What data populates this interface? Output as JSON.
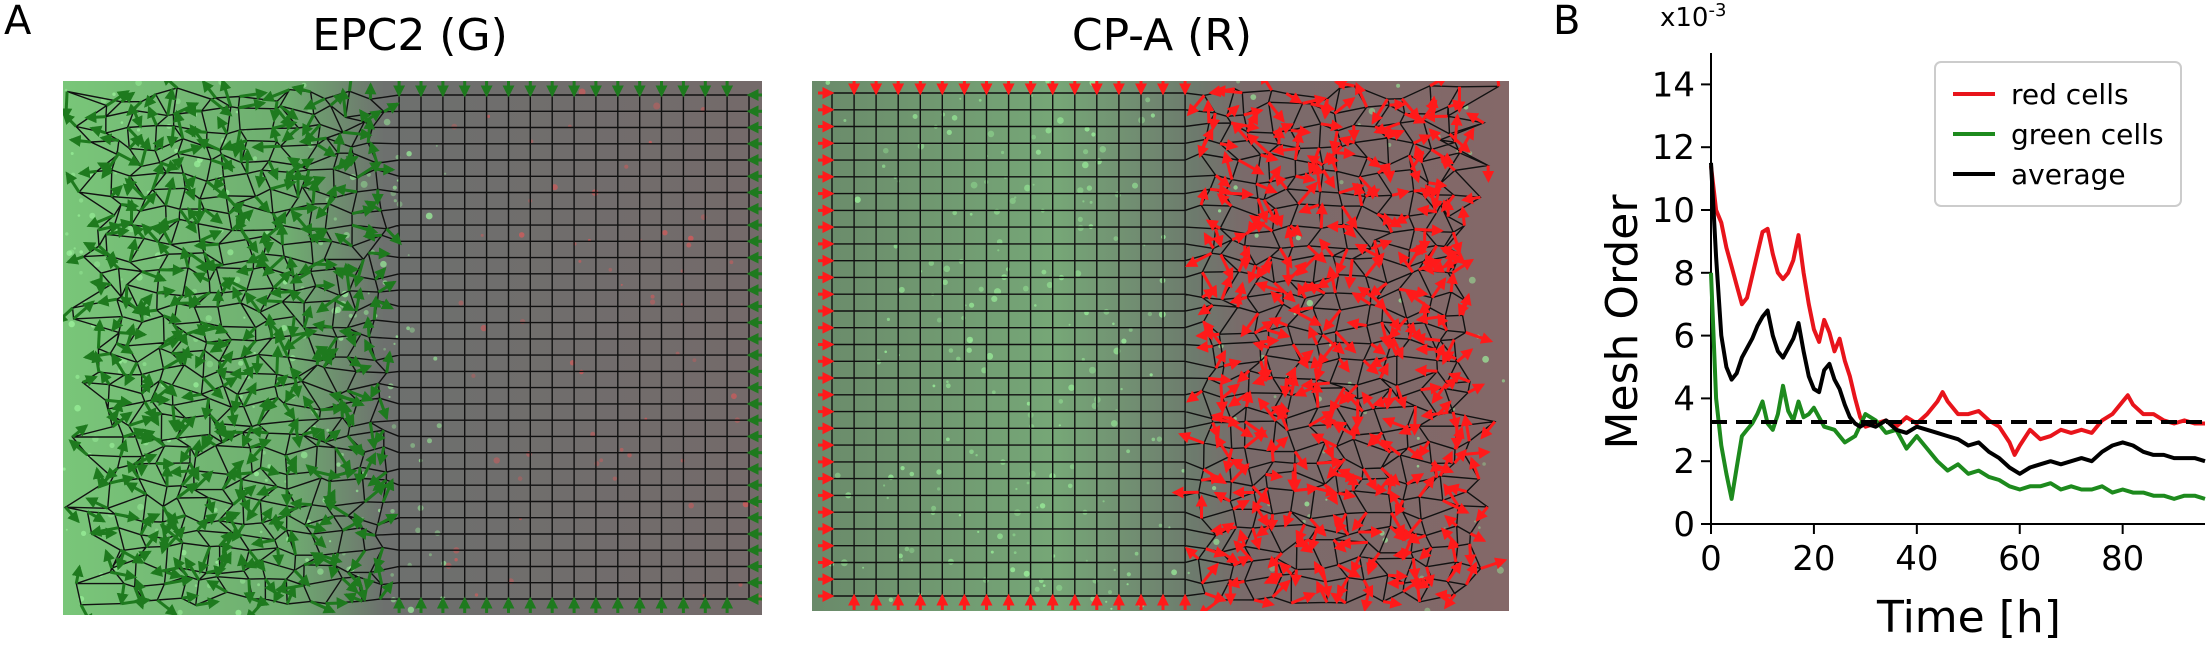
{
  "figure": {
    "panel_a_label": "A",
    "panel_b_label": "B",
    "left_image_title": "EPC2 (G)",
    "right_image_title": "CP-A (R)",
    "colors": {
      "green": "#1e7a1e",
      "red": "#ff1a1a",
      "black": "#000000",
      "grid_line": "#111111",
      "image_bg": "#6d6f6d"
    }
  },
  "chart_data": {
    "type": "line",
    "xlabel": "Time [h]",
    "ylabel": "Mesh Order",
    "y_multiplier": "x10",
    "y_multiplier_exp": "-3",
    "xlim": [
      0,
      96
    ],
    "ylim": [
      0,
      15
    ],
    "xticks": [
      0,
      20,
      40,
      60,
      80
    ],
    "yticks": [
      0,
      2,
      4,
      6,
      8,
      10,
      12,
      14
    ],
    "legend_position": "top-right",
    "threshold": {
      "y": 3.25,
      "style": "dashed",
      "color": "#000000"
    },
    "series": [
      {
        "name": "red cells",
        "color": "#e8141b",
        "points": [
          [
            0,
            11.4
          ],
          [
            1,
            10
          ],
          [
            2,
            9.6
          ],
          [
            3,
            8.8
          ],
          [
            4,
            8.2
          ],
          [
            5,
            7.6
          ],
          [
            6,
            7
          ],
          [
            7,
            7.2
          ],
          [
            8,
            7.9
          ],
          [
            9,
            8.6
          ],
          [
            10,
            9.3
          ],
          [
            11,
            9.4
          ],
          [
            12,
            8.6
          ],
          [
            13,
            8
          ],
          [
            14,
            7.8
          ],
          [
            15,
            8
          ],
          [
            16,
            8.4
          ],
          [
            17,
            9.2
          ],
          [
            18,
            8
          ],
          [
            19,
            7
          ],
          [
            20,
            6.2
          ],
          [
            21,
            5.8
          ],
          [
            22,
            6.5
          ],
          [
            23,
            6.1
          ],
          [
            24,
            5.5
          ],
          [
            25,
            5.9
          ],
          [
            26,
            5.2
          ],
          [
            27,
            4.7
          ],
          [
            28,
            4
          ],
          [
            29,
            3.4
          ],
          [
            30,
            3.1
          ],
          [
            32,
            3.2
          ],
          [
            34,
            3.3
          ],
          [
            36,
            3.1
          ],
          [
            38,
            3.4
          ],
          [
            40,
            3.2
          ],
          [
            42,
            3.5
          ],
          [
            44,
            3.9
          ],
          [
            45,
            4.2
          ],
          [
            46,
            3.9
          ],
          [
            48,
            3.5
          ],
          [
            50,
            3.5
          ],
          [
            52,
            3.6
          ],
          [
            54,
            3.3
          ],
          [
            56,
            3.1
          ],
          [
            58,
            2.6
          ],
          [
            59,
            2.2
          ],
          [
            60,
            2.5
          ],
          [
            62,
            3
          ],
          [
            64,
            2.7
          ],
          [
            66,
            2.8
          ],
          [
            68,
            3
          ],
          [
            70,
            2.9
          ],
          [
            72,
            3
          ],
          [
            74,
            2.9
          ],
          [
            76,
            3.3
          ],
          [
            78,
            3.5
          ],
          [
            80,
            3.9
          ],
          [
            81,
            4.1
          ],
          [
            82,
            3.8
          ],
          [
            84,
            3.5
          ],
          [
            86,
            3.5
          ],
          [
            88,
            3.3
          ],
          [
            90,
            3.2
          ],
          [
            92,
            3.3
          ],
          [
            94,
            3.2
          ],
          [
            96,
            3.2
          ]
        ]
      },
      {
        "name": "green cells",
        "color": "#1d8a1d",
        "points": [
          [
            0,
            8
          ],
          [
            1,
            4
          ],
          [
            2,
            2.5
          ],
          [
            3,
            1.6
          ],
          [
            4,
            0.8
          ],
          [
            5,
            1.8
          ],
          [
            6,
            2.8
          ],
          [
            7,
            3
          ],
          [
            8,
            3.2
          ],
          [
            9,
            3.5
          ],
          [
            10,
            3.9
          ],
          [
            11,
            3.2
          ],
          [
            12,
            3
          ],
          [
            13,
            3.5
          ],
          [
            14,
            4.4
          ],
          [
            15,
            3.6
          ],
          [
            16,
            3.3
          ],
          [
            17,
            3.9
          ],
          [
            18,
            3.4
          ],
          [
            19,
            3.5
          ],
          [
            20,
            3.7
          ],
          [
            22,
            3.1
          ],
          [
            24,
            3
          ],
          [
            26,
            2.6
          ],
          [
            28,
            2.8
          ],
          [
            30,
            3.5
          ],
          [
            32,
            3.3
          ],
          [
            34,
            2.9
          ],
          [
            36,
            3
          ],
          [
            38,
            2.4
          ],
          [
            40,
            2.8
          ],
          [
            42,
            2.4
          ],
          [
            44,
            2
          ],
          [
            46,
            1.7
          ],
          [
            48,
            1.9
          ],
          [
            50,
            1.6
          ],
          [
            52,
            1.7
          ],
          [
            54,
            1.5
          ],
          [
            56,
            1.4
          ],
          [
            58,
            1.2
          ],
          [
            60,
            1.1
          ],
          [
            62,
            1.2
          ],
          [
            64,
            1.2
          ],
          [
            66,
            1.3
          ],
          [
            68,
            1.1
          ],
          [
            70,
            1.2
          ],
          [
            72,
            1.1
          ],
          [
            74,
            1.1
          ],
          [
            76,
            1.2
          ],
          [
            78,
            1
          ],
          [
            80,
            1.1
          ],
          [
            82,
            1
          ],
          [
            84,
            1
          ],
          [
            86,
            0.9
          ],
          [
            88,
            0.9
          ],
          [
            90,
            0.8
          ],
          [
            92,
            0.9
          ],
          [
            94,
            0.9
          ],
          [
            96,
            0.8
          ]
        ]
      },
      {
        "name": "average",
        "color": "#000000",
        "points": [
          [
            0,
            11.5
          ],
          [
            1,
            8.5
          ],
          [
            2,
            6
          ],
          [
            3,
            5
          ],
          [
            4,
            4.6
          ],
          [
            5,
            4.8
          ],
          [
            6,
            5.3
          ],
          [
            7,
            5.6
          ],
          [
            8,
            5.9
          ],
          [
            9,
            6.3
          ],
          [
            10,
            6.6
          ],
          [
            11,
            6.8
          ],
          [
            12,
            6
          ],
          [
            13,
            5.5
          ],
          [
            14,
            5.3
          ],
          [
            15,
            5.6
          ],
          [
            16,
            5.9
          ],
          [
            17,
            6.4
          ],
          [
            18,
            5.5
          ],
          [
            19,
            4.7
          ],
          [
            20,
            4.3
          ],
          [
            21,
            4.2
          ],
          [
            22,
            4.9
          ],
          [
            23,
            5.1
          ],
          [
            24,
            4.6
          ],
          [
            25,
            4.3
          ],
          [
            26,
            3.8
          ],
          [
            27,
            3.4
          ],
          [
            28,
            3.2
          ],
          [
            29,
            3.1
          ],
          [
            30,
            3.2
          ],
          [
            32,
            3.1
          ],
          [
            34,
            3.3
          ],
          [
            36,
            3
          ],
          [
            38,
            2.9
          ],
          [
            40,
            3.1
          ],
          [
            42,
            3
          ],
          [
            44,
            2.9
          ],
          [
            46,
            2.8
          ],
          [
            48,
            2.7
          ],
          [
            50,
            2.5
          ],
          [
            52,
            2.6
          ],
          [
            54,
            2.3
          ],
          [
            56,
            2.1
          ],
          [
            58,
            1.8
          ],
          [
            60,
            1.6
          ],
          [
            62,
            1.8
          ],
          [
            64,
            1.9
          ],
          [
            66,
            2
          ],
          [
            68,
            1.9
          ],
          [
            70,
            2
          ],
          [
            72,
            2.1
          ],
          [
            74,
            2
          ],
          [
            76,
            2.3
          ],
          [
            78,
            2.5
          ],
          [
            80,
            2.6
          ],
          [
            82,
            2.5
          ],
          [
            84,
            2.3
          ],
          [
            86,
            2.2
          ],
          [
            88,
            2.2
          ],
          [
            90,
            2.1
          ],
          [
            92,
            2.1
          ],
          [
            94,
            2.1
          ],
          [
            96,
            2
          ]
        ]
      }
    ]
  }
}
